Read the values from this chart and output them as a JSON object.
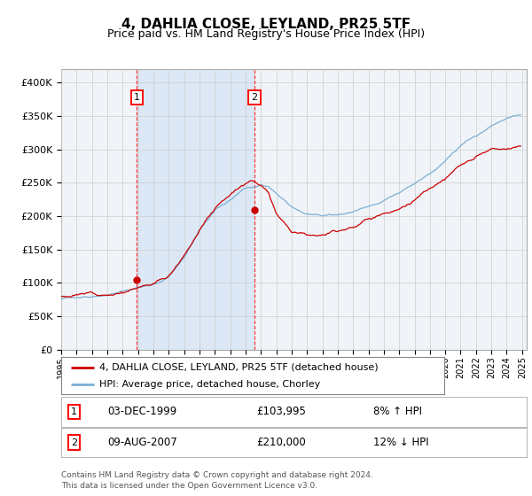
{
  "title": "4, DAHLIA CLOSE, LEYLAND, PR25 5TF",
  "subtitle": "Price paid vs. HM Land Registry's House Price Index (HPI)",
  "y_ticks": [
    0,
    50000,
    100000,
    150000,
    200000,
    250000,
    300000,
    350000,
    400000
  ],
  "y_tick_labels": [
    "£0",
    "£50K",
    "£100K",
    "£150K",
    "£200K",
    "£250K",
    "£300K",
    "£350K",
    "£400K"
  ],
  "sale1_year": 1999,
  "sale1_month_idx": 11,
  "sale1_price": 103995,
  "sale1_date": "03-DEC-1999",
  "sale1_hpi_label": "8% ↑ HPI",
  "sale2_year": 2007,
  "sale2_month_idx": 7,
  "sale2_price": 210000,
  "sale2_date": "09-AUG-2007",
  "sale2_hpi_label": "12% ↓ HPI",
  "legend_line1": "4, DAHLIA CLOSE, LEYLAND, PR25 5TF (detached house)",
  "legend_line2": "HPI: Average price, detached house, Chorley",
  "footnote1": "Contains HM Land Registry data © Crown copyright and database right 2024.",
  "footnote2": "This data is licensed under the Open Government Licence v3.0.",
  "property_color": "#cc0000",
  "hpi_color": "#7bafd4",
  "shade_color": "#dce8f5",
  "bg_color": "#f0f4f8",
  "plot_bg": "#ffffff",
  "grid_color": "#cccccc",
  "sale1_price_str": "£103,995",
  "sale2_price_str": "£210,000"
}
